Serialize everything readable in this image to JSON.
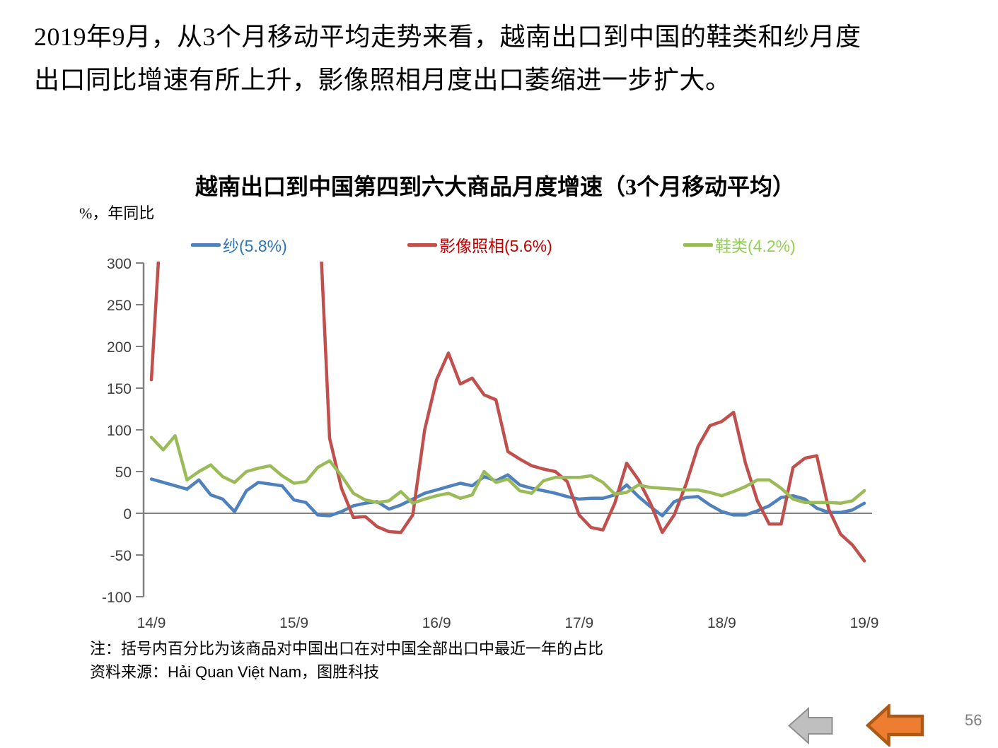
{
  "heading": {
    "line1": "2019年9月，从3个月移动平均走势来看，越南出口到中国的鞋类和纱月度",
    "line2": "出口同比增速有所上升，影像照相月度出口萎缩进一步扩大。"
  },
  "chart_data": {
    "type": "line",
    "title": "越南出口到中国第四到六大商品月度增速（3个月移动平均）",
    "y_axis_label": "%，年同比",
    "ylim": [
      -100,
      300
    ],
    "y_ticks": [
      300,
      250,
      200,
      150,
      100,
      50,
      0,
      -50,
      -100
    ],
    "x_range": {
      "start": "2014/9",
      "end": "2019/9",
      "frequency": "monthly",
      "points": 61
    },
    "x_ticks": [
      {
        "index": 0,
        "label": "14/9"
      },
      {
        "index": 12,
        "label": "15/9"
      },
      {
        "index": 24,
        "label": "16/9"
      },
      {
        "index": 36,
        "label": "17/9"
      },
      {
        "index": 48,
        "label": "18/9"
      },
      {
        "index": 60,
        "label": "19/9"
      }
    ],
    "grid": "zero-line-only",
    "legend_position": "top",
    "axis_color": "#808080",
    "tick_label_color": "#3F3F3F",
    "clipped_note": "影像照相 series exceeds y-axis max (300) between late 2014 and late 2015; off-scale months encoded as 400 and clipped when drawn",
    "series": [
      {
        "name": "纱",
        "legend_label": "纱(5.8%)",
        "color": "#4F81BD",
        "label_color": "#2E74B5",
        "values": [
          41,
          37,
          33,
          29,
          40,
          22,
          17,
          2,
          27,
          37,
          35,
          33,
          16,
          13,
          -2,
          -3,
          2,
          9,
          12,
          14,
          5,
          10,
          17,
          24,
          28,
          32,
          36,
          33,
          44,
          39,
          46,
          34,
          30,
          27,
          24,
          20,
          17,
          18,
          18,
          22,
          34,
          20,
          8,
          -3,
          14,
          19,
          20,
          10,
          2,
          -2,
          -2,
          3,
          9,
          19,
          21,
          17,
          6,
          1,
          1,
          4,
          12
        ]
      },
      {
        "name": "影像照相",
        "legend_label": "影像照相(5.6%)",
        "color": "#C0504D",
        "label_color": "#C00000",
        "values": [
          160,
          400,
          400,
          400,
          400,
          400,
          400,
          400,
          400,
          400,
          400,
          400,
          400,
          400,
          400,
          90,
          30,
          -5,
          -4,
          -16,
          -22,
          -23,
          -2,
          100,
          160,
          192,
          155,
          162,
          142,
          136,
          74,
          65,
          57,
          53,
          50,
          38,
          -2,
          -17,
          -20,
          12,
          60,
          40,
          12,
          -23,
          -2,
          35,
          80,
          105,
          110,
          121,
          60,
          15,
          -13,
          -13,
          55,
          66,
          69,
          5,
          -25,
          -38,
          -57
        ]
      },
      {
        "name": "鞋类",
        "legend_label": "鞋类(4.2%)",
        "color": "#9BBB59",
        "label_color": "#92D050",
        "values": [
          91,
          76,
          93,
          40,
          50,
          58,
          44,
          37,
          50,
          54,
          57,
          45,
          36,
          38,
          55,
          63,
          45,
          24,
          16,
          13,
          15,
          26,
          12,
          17,
          21,
          24,
          18,
          22,
          50,
          37,
          41,
          27,
          24,
          39,
          43,
          43,
          43,
          45,
          37,
          23,
          25,
          34,
          31,
          30,
          29,
          28,
          28,
          25,
          21,
          26,
          32,
          40,
          40,
          30,
          17,
          13,
          13,
          13,
          12,
          15,
          27
        ]
      }
    ]
  },
  "notes": {
    "line1": "注：括号内百分比为该商品对中国出口在对中国全部出口中最近一年的占比",
    "line2": "资料来源：Hải Quan Việt Nam，图胜科技"
  },
  "footer": {
    "page_number": "56",
    "arrows": [
      {
        "name": "gray",
        "fill": "#BFBFBF",
        "stroke": "#8F8F8F"
      },
      {
        "name": "orange",
        "fill": "#ED7D31",
        "stroke": "#AD5A17"
      }
    ]
  }
}
